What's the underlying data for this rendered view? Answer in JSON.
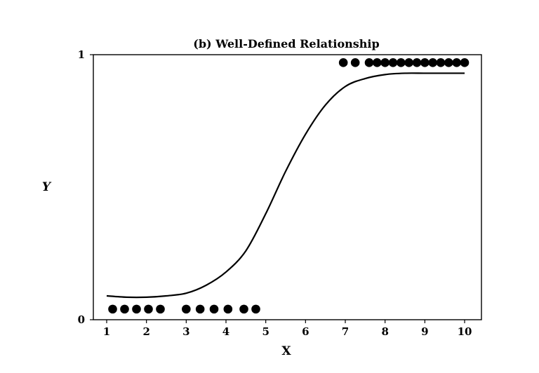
{
  "chart_data": {
    "type": "scatter",
    "title": "(b) Well-Defined Relationship",
    "xlabel": "X",
    "ylabel": "Y",
    "xlim": [
      0.8,
      10.5
    ],
    "ylim": [
      0,
      1
    ],
    "x_ticks": [
      "1",
      "2",
      "3",
      "4",
      "5",
      "6",
      "7",
      "8",
      "9",
      "10"
    ],
    "y_ticks": [
      "0",
      "1"
    ],
    "grid": false,
    "legend": "none",
    "series": [
      {
        "type": "scatter",
        "x": [
          1.15,
          1.45,
          1.75,
          2.05,
          2.35,
          3.0,
          3.35,
          3.7,
          4.05,
          4.45,
          4.75,
          6.95,
          7.25,
          7.6,
          7.8,
          8.0,
          8.2,
          8.4,
          8.6,
          8.8,
          9.0,
          9.2,
          9.4,
          9.6,
          9.8,
          10.0
        ],
        "y": [
          0.04,
          0.04,
          0.04,
          0.04,
          0.04,
          0.04,
          0.04,
          0.04,
          0.04,
          0.04,
          0.04,
          0.97,
          0.97,
          0.97,
          0.97,
          0.97,
          0.97,
          0.97,
          0.97,
          0.97,
          0.97,
          0.97,
          0.97,
          0.97,
          0.97,
          0.97
        ]
      },
      {
        "type": "line",
        "x": [
          1.0,
          1.5,
          2.0,
          2.5,
          3.0,
          3.5,
          4.0,
          4.5,
          5.0,
          5.5,
          6.0,
          6.5,
          7.0,
          7.5,
          8.0,
          8.5,
          9.0,
          9.5,
          10.0
        ],
        "y": [
          0.09,
          0.085,
          0.085,
          0.09,
          0.1,
          0.13,
          0.18,
          0.26,
          0.4,
          0.56,
          0.7,
          0.81,
          0.88,
          0.91,
          0.925,
          0.93,
          0.93,
          0.93,
          0.93
        ]
      }
    ],
    "colors": {
      "marker": "#000000",
      "line": "#000000",
      "axes": "#000000"
    }
  }
}
